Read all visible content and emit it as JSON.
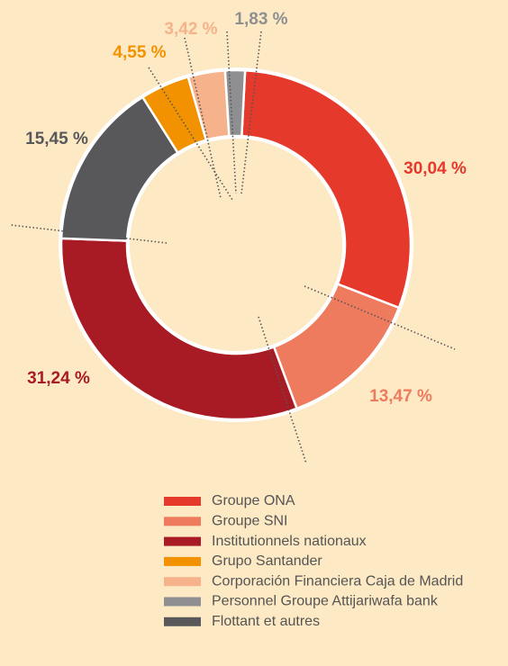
{
  "chart_data": {
    "type": "donut",
    "categories": [
      "Groupe ONA",
      "Groupe SNI",
      "Institutionnels nationaux",
      "Grupo Santander",
      "Corporación Financiera Caja de Madrid",
      "Personnel Groupe Attijariwafa bank",
      "Flottant et autres"
    ],
    "values": [
      30.04,
      13.47,
      31.24,
      4.55,
      3.42,
      1.83,
      15.45
    ],
    "value_labels": [
      "30,04 %",
      "13,47 %",
      "31,24 %",
      "4,55 %",
      "3,42 %",
      "1,83 %",
      "15,45 %"
    ],
    "colors": [
      "#e5392c",
      "#ee7b5e",
      "#a91b24",
      "#f39200",
      "#f6b38b",
      "#8f8f92",
      "#58585b"
    ],
    "legend": "bottom"
  }
}
